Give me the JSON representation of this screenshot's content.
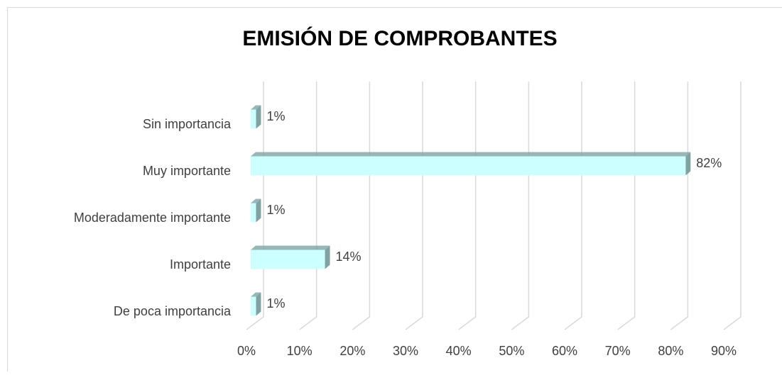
{
  "chart_data": {
    "type": "bar3d",
    "title": "EMISIÓN DE COMPROBANTES",
    "categories": [
      "Sin importancia",
      "Muy importante",
      "Moderadamente importante",
      "Importante",
      "De poca importancia"
    ],
    "values": [
      1,
      82,
      1,
      14,
      1
    ],
    "value_labels": [
      "1%",
      "82%",
      "1%",
      "14%",
      "1%"
    ],
    "color": "#ccffff",
    "side_color": "#7fa3a3",
    "xlim": [
      0,
      90
    ],
    "xticks": [
      {
        "value": 0,
        "label": "0%"
      },
      {
        "value": 10,
        "label": "10%"
      },
      {
        "value": 20,
        "label": "20%"
      },
      {
        "value": 30,
        "label": "30%"
      },
      {
        "value": 40,
        "label": "40%"
      },
      {
        "value": 50,
        "label": "50%"
      },
      {
        "value": 60,
        "label": "60%"
      },
      {
        "value": 70,
        "label": "70%"
      },
      {
        "value": 80,
        "label": "80%"
      },
      {
        "value": 90,
        "label": "90%"
      }
    ],
    "grid": true
  }
}
